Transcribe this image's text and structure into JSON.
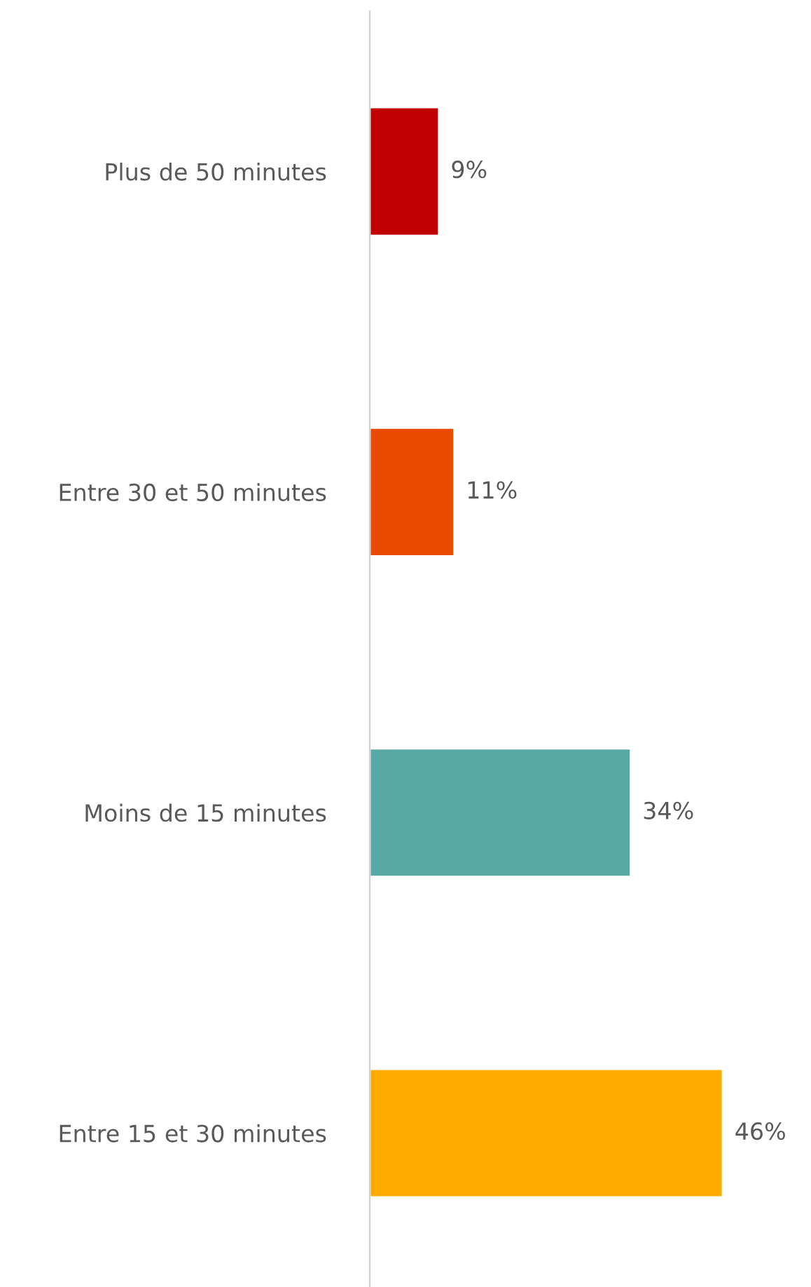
{
  "chart_data": {
    "type": "bar",
    "orientation": "horizontal",
    "categories": [
      "Plus de 50 minutes",
      "Entre 30 et 50 minutes",
      "Moins de 15 minutes",
      "Entre 15 et 30 minutes"
    ],
    "values": [
      9,
      11,
      34,
      46
    ],
    "colors": [
      "#c00000",
      "#e94c00",
      "#58a8a4",
      "#ffaa00"
    ],
    "value_labels": [
      "9%",
      "11%",
      "34%",
      "46%"
    ],
    "grid": false,
    "legend": false
  }
}
